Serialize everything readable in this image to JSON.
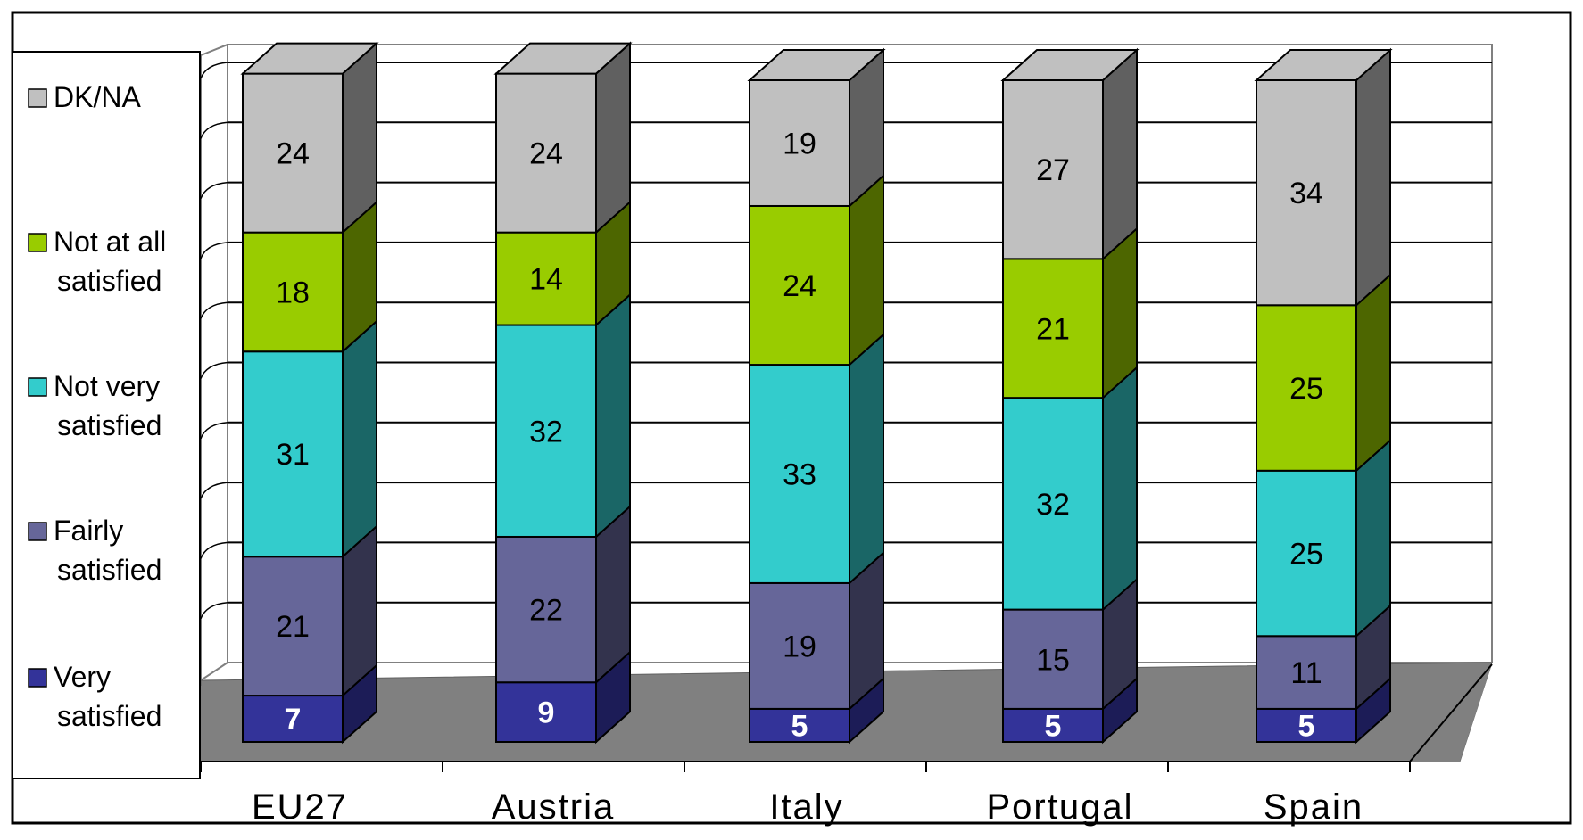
{
  "chart_data": {
    "type": "bar",
    "stacked": true,
    "three_d": true,
    "title": "",
    "xlabel": "",
    "ylabel": "",
    "ylim": [
      0,
      100
    ],
    "grid": true,
    "legend_position": "left",
    "categories": [
      "EU27",
      "Austria",
      "Italy",
      "Portugal",
      "Spain"
    ],
    "series": [
      {
        "name": "Very satisfied",
        "legend_lines": [
          "Very",
          "satisfied"
        ],
        "color": "#333399",
        "side_color": "#1c1c57",
        "values": [
          7,
          9,
          5,
          5,
          5
        ]
      },
      {
        "name": "Fairly satisfied",
        "legend_lines": [
          "Fairly",
          "satisfied"
        ],
        "color": "#666699",
        "side_color": "#33334d",
        "values": [
          21,
          22,
          19,
          15,
          11
        ]
      },
      {
        "name": "Not very satisfied",
        "legend_lines": [
          "Not very",
          "satisfied"
        ],
        "color": "#33cccc",
        "side_color": "#1a6666",
        "values": [
          31,
          32,
          33,
          32,
          25
        ]
      },
      {
        "name": "Not at all satisfied",
        "legend_lines": [
          "Not at all",
          "satisfied"
        ],
        "color": "#99cc00",
        "side_color": "#4d6600",
        "values": [
          18,
          14,
          24,
          21,
          25
        ]
      },
      {
        "name": "DK/NA",
        "legend_lines": [
          "DK/NA"
        ],
        "color": "#c0c0c0",
        "side_color": "#606060",
        "values": [
          24,
          24,
          19,
          27,
          34
        ]
      }
    ],
    "colors": {
      "floor": "#808080",
      "gridline": "#000000",
      "background": "#ffffff"
    }
  }
}
